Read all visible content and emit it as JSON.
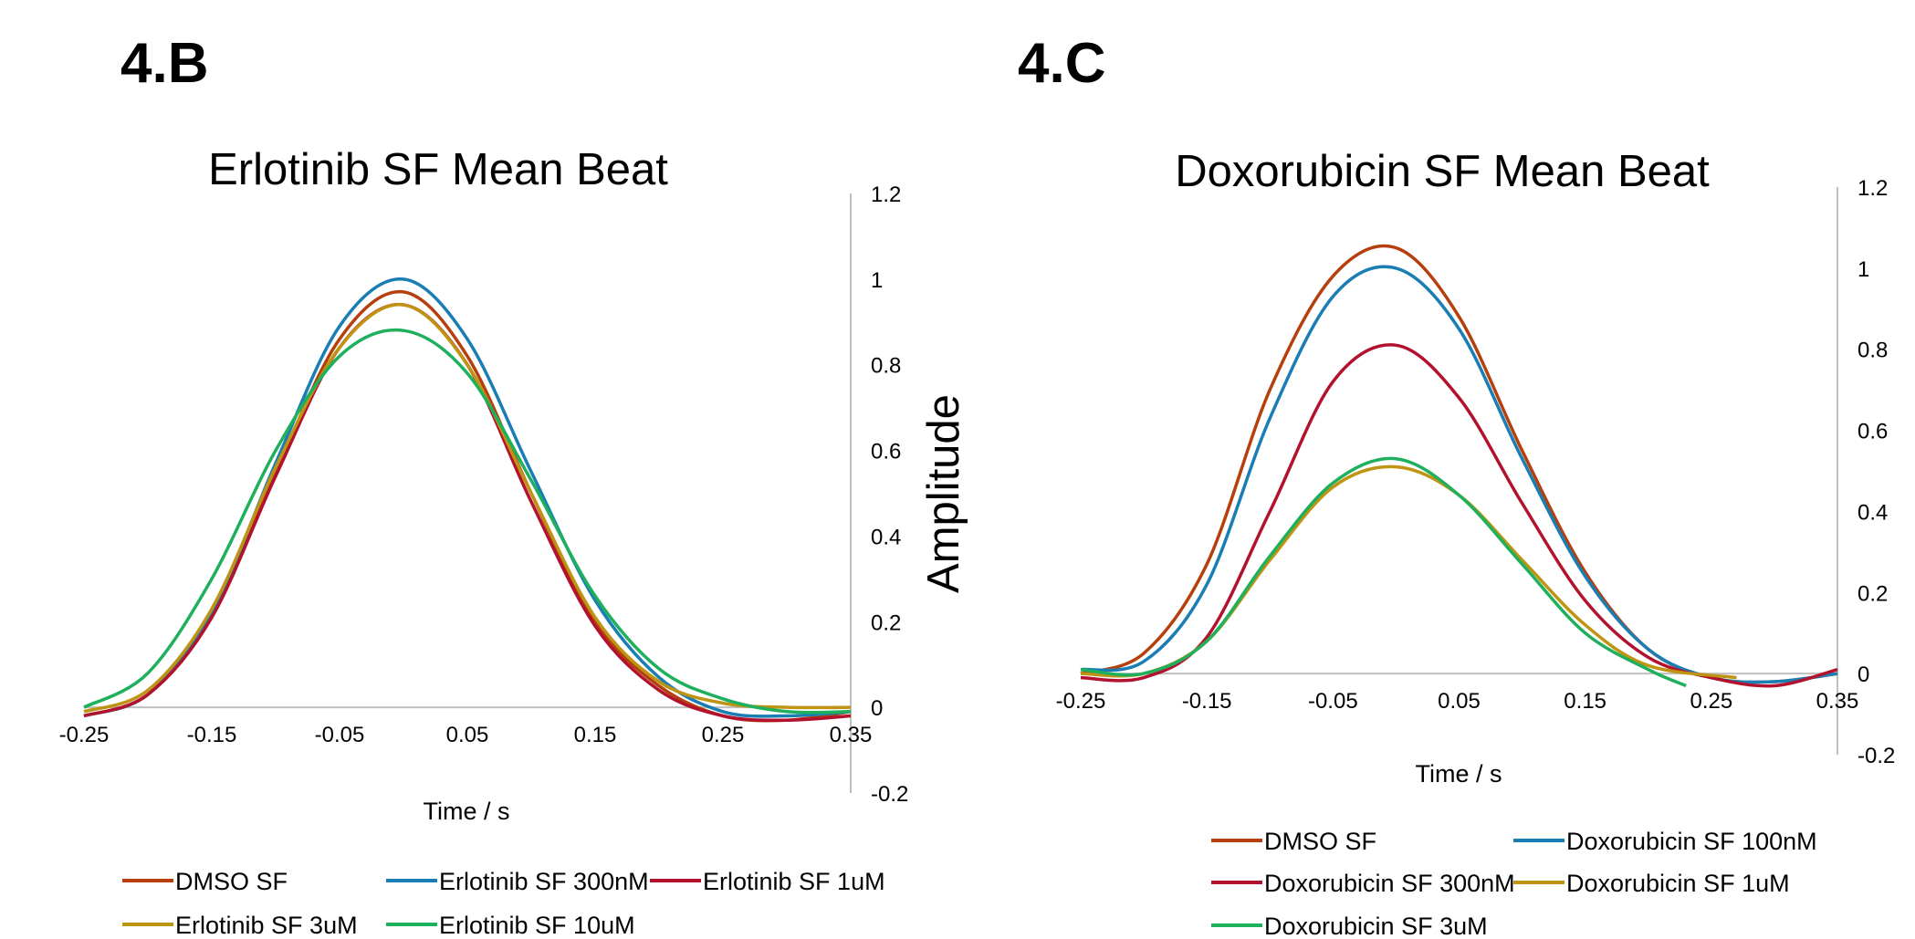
{
  "panels": {
    "b": {
      "label": "4.B"
    },
    "c": {
      "label": "4.C"
    }
  },
  "chart_data": [
    {
      "type": "line",
      "title": "Erlotinib SF Mean Beat",
      "xlabel": "Time / s",
      "ylabel": "Amplitude",
      "xlim": [
        -0.25,
        0.35
      ],
      "ylim": [
        -0.2,
        1.2
      ],
      "x_ticks": [
        "-0.25",
        "-0.15",
        "-0.05",
        "0.05",
        "0.15",
        "0.25",
        "0.35"
      ],
      "y_ticks": [
        "-0.2",
        "0",
        "0.2",
        "0.4",
        "0.6",
        "0.8",
        "1",
        "1.2"
      ],
      "grid": false,
      "legend_position": "bottom",
      "series": [
        {
          "name": "DMSO SF",
          "color": "#B5400D",
          "x": [
            -0.25,
            -0.2,
            -0.15,
            -0.1,
            -0.05,
            0,
            0.05,
            0.1,
            0.15,
            0.2,
            0.25,
            0.3,
            0.35
          ],
          "y": [
            -0.02,
            0.03,
            0.22,
            0.55,
            0.86,
            0.97,
            0.82,
            0.5,
            0.2,
            0.05,
            -0.02,
            -0.03,
            -0.01
          ]
        },
        {
          "name": "Erlotinib SF 300nM",
          "color": "#1A7DB4",
          "x": [
            -0.25,
            -0.2,
            -0.15,
            -0.1,
            -0.05,
            0,
            0.05,
            0.1,
            0.15,
            0.2,
            0.25,
            0.3,
            0.35
          ],
          "y": [
            -0.02,
            0.03,
            0.22,
            0.57,
            0.89,
            1.0,
            0.86,
            0.55,
            0.25,
            0.07,
            -0.01,
            -0.02,
            -0.01
          ]
        },
        {
          "name": "Erlotinib SF 1uM",
          "color": "#B3122E",
          "x": [
            -0.25,
            -0.2,
            -0.15,
            -0.1,
            -0.05,
            0,
            0.05,
            0.1,
            0.15,
            0.2,
            0.25,
            0.3,
            0.35
          ],
          "y": [
            -0.02,
            0.03,
            0.21,
            0.54,
            0.84,
            0.94,
            0.8,
            0.48,
            0.19,
            0.04,
            -0.02,
            -0.03,
            -0.02
          ]
        },
        {
          "name": "Erlotinib SF 3uM",
          "color": "#BF9412",
          "x": [
            -0.25,
            -0.2,
            -0.15,
            -0.1,
            -0.05,
            0,
            0.05,
            0.1,
            0.15,
            0.2,
            0.25,
            0.3,
            0.35
          ],
          "y": [
            -0.01,
            0.04,
            0.23,
            0.56,
            0.84,
            0.94,
            0.8,
            0.5,
            0.21,
            0.06,
            0.01,
            0.0,
            0.0
          ]
        },
        {
          "name": "Erlotinib SF 10uM",
          "color": "#1EB05C",
          "x": [
            -0.25,
            -0.2,
            -0.15,
            -0.1,
            -0.05,
            0,
            0.05,
            0.1,
            0.15,
            0.2,
            0.25,
            0.3,
            0.35
          ],
          "y": [
            0.0,
            0.08,
            0.3,
            0.6,
            0.82,
            0.88,
            0.78,
            0.53,
            0.26,
            0.09,
            0.02,
            -0.01,
            -0.01
          ]
        }
      ]
    },
    {
      "type": "line",
      "title": "Doxorubicin SF Mean Beat",
      "xlabel": "Time / s",
      "ylabel": "",
      "xlim": [
        -0.25,
        0.35
      ],
      "ylim": [
        -0.2,
        1.2
      ],
      "x_ticks": [
        "-0.25",
        "-0.15",
        "-0.05",
        "0.05",
        "0.15",
        "0.25",
        "0.35"
      ],
      "y_ticks": [
        "-0.2",
        "0",
        "0.2",
        "0.4",
        "0.6",
        "0.8",
        "1",
        "1.2"
      ],
      "grid": false,
      "legend_position": "bottom",
      "series": [
        {
          "name": "DMSO SF",
          "color": "#B5400D",
          "x": [
            -0.25,
            -0.2,
            -0.15,
            -0.1,
            -0.05,
            0,
            0.05,
            0.1,
            0.15,
            0.2,
            0.25,
            0.3,
            0.35
          ],
          "y": [
            0.0,
            0.05,
            0.27,
            0.7,
            0.98,
            1.05,
            0.88,
            0.55,
            0.25,
            0.06,
            -0.01,
            -0.02,
            0.0
          ]
        },
        {
          "name": "Doxorubicin SF 100nM",
          "color": "#1A7DB4",
          "x": [
            -0.25,
            -0.2,
            -0.15,
            -0.1,
            -0.05,
            0,
            0.05,
            0.1,
            0.15,
            0.2,
            0.25,
            0.3,
            0.35
          ],
          "y": [
            0.01,
            0.03,
            0.22,
            0.63,
            0.93,
            1.0,
            0.85,
            0.53,
            0.24,
            0.06,
            -0.01,
            -0.02,
            0.0
          ]
        },
        {
          "name": "Doxorubicin SF 300nM",
          "color": "#B3122E",
          "x": [
            -0.25,
            -0.2,
            -0.15,
            -0.1,
            -0.05,
            0,
            0.05,
            0.1,
            0.15,
            0.2,
            0.25,
            0.3,
            0.35
          ],
          "y": [
            -0.01,
            -0.01,
            0.09,
            0.4,
            0.72,
            0.81,
            0.68,
            0.42,
            0.18,
            0.04,
            -0.01,
            -0.03,
            0.01
          ]
        },
        {
          "name": "Doxorubicin SF 1uM",
          "color": "#BF9412",
          "x": [
            -0.25,
            -0.2,
            -0.15,
            -0.1,
            -0.05,
            0,
            0.05,
            0.1,
            0.15,
            0.2,
            0.27
          ],
          "y": [
            0.0,
            0.0,
            0.08,
            0.28,
            0.46,
            0.51,
            0.44,
            0.28,
            0.12,
            0.02,
            -0.01
          ]
        },
        {
          "name": "Doxorubicin SF 3uM",
          "color": "#1EB05C",
          "x": [
            -0.25,
            -0.2,
            -0.15,
            -0.1,
            -0.05,
            0,
            0.05,
            0.1,
            0.15,
            0.2,
            0.23
          ],
          "y": [
            0.01,
            0.0,
            0.08,
            0.29,
            0.47,
            0.53,
            0.44,
            0.27,
            0.1,
            0.01,
            -0.03
          ]
        }
      ]
    }
  ]
}
